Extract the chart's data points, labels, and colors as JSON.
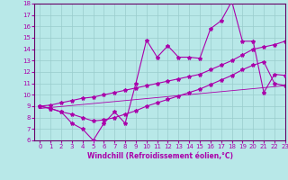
{
  "xlabel": "Windchill (Refroidissement éolien,°C)",
  "bg_color": "#b8e8e8",
  "plot_bg_color": "#b8e8e8",
  "line_color": "#aa00aa",
  "grid_color": "#99cccc",
  "spine_color": "#660066",
  "ylim": [
    6,
    18
  ],
  "xlim": [
    -0.5,
    23
  ],
  "yticks": [
    6,
    7,
    8,
    9,
    10,
    11,
    12,
    13,
    14,
    15,
    16,
    17,
    18
  ],
  "xticks": [
    0,
    1,
    2,
    3,
    4,
    5,
    6,
    7,
    8,
    9,
    10,
    11,
    12,
    13,
    14,
    15,
    16,
    17,
    18,
    19,
    20,
    21,
    22,
    23
  ],
  "main_x": [
    0,
    1,
    2,
    3,
    4,
    5,
    6,
    7,
    8,
    9,
    10,
    11,
    12,
    13,
    14,
    15,
    16,
    17,
    18,
    19,
    20,
    21,
    22,
    23
  ],
  "main_y": [
    9.0,
    8.8,
    8.5,
    7.5,
    7.0,
    6.0,
    7.5,
    8.5,
    7.5,
    11.0,
    14.8,
    13.3,
    14.3,
    13.3,
    13.3,
    13.2,
    15.8,
    16.5,
    18.2,
    14.7,
    14.7,
    10.2,
    11.8,
    11.7
  ],
  "upper_x": [
    0,
    1,
    2,
    3,
    4,
    5,
    6,
    7,
    8,
    9,
    10,
    11,
    12,
    13,
    14,
    15,
    16,
    17,
    18,
    19,
    20,
    21,
    22,
    23
  ],
  "upper_y": [
    9.0,
    9.1,
    9.3,
    9.5,
    9.7,
    9.8,
    10.0,
    10.2,
    10.4,
    10.6,
    10.8,
    11.0,
    11.2,
    11.4,
    11.6,
    11.8,
    12.2,
    12.6,
    13.0,
    13.5,
    14.0,
    14.2,
    14.4,
    14.7
  ],
  "lower_x": [
    0,
    1,
    2,
    3,
    4,
    5,
    6,
    7,
    8,
    9,
    10,
    11,
    12,
    13,
    14,
    15,
    16,
    17,
    18,
    19,
    20,
    21,
    22,
    23
  ],
  "lower_y": [
    9.0,
    8.8,
    8.5,
    8.3,
    8.0,
    7.7,
    7.8,
    8.0,
    8.3,
    8.6,
    9.0,
    9.3,
    9.6,
    9.9,
    10.2,
    10.5,
    10.9,
    11.3,
    11.7,
    12.2,
    12.6,
    12.9,
    11.0,
    10.8
  ],
  "trend_x": [
    0,
    23
  ],
  "trend_y": [
    8.8,
    10.8
  ],
  "marker": "*",
  "markersize": 3,
  "linewidth": 0.8,
  "label_fontsize": 5.5,
  "tick_fontsize": 5.0
}
